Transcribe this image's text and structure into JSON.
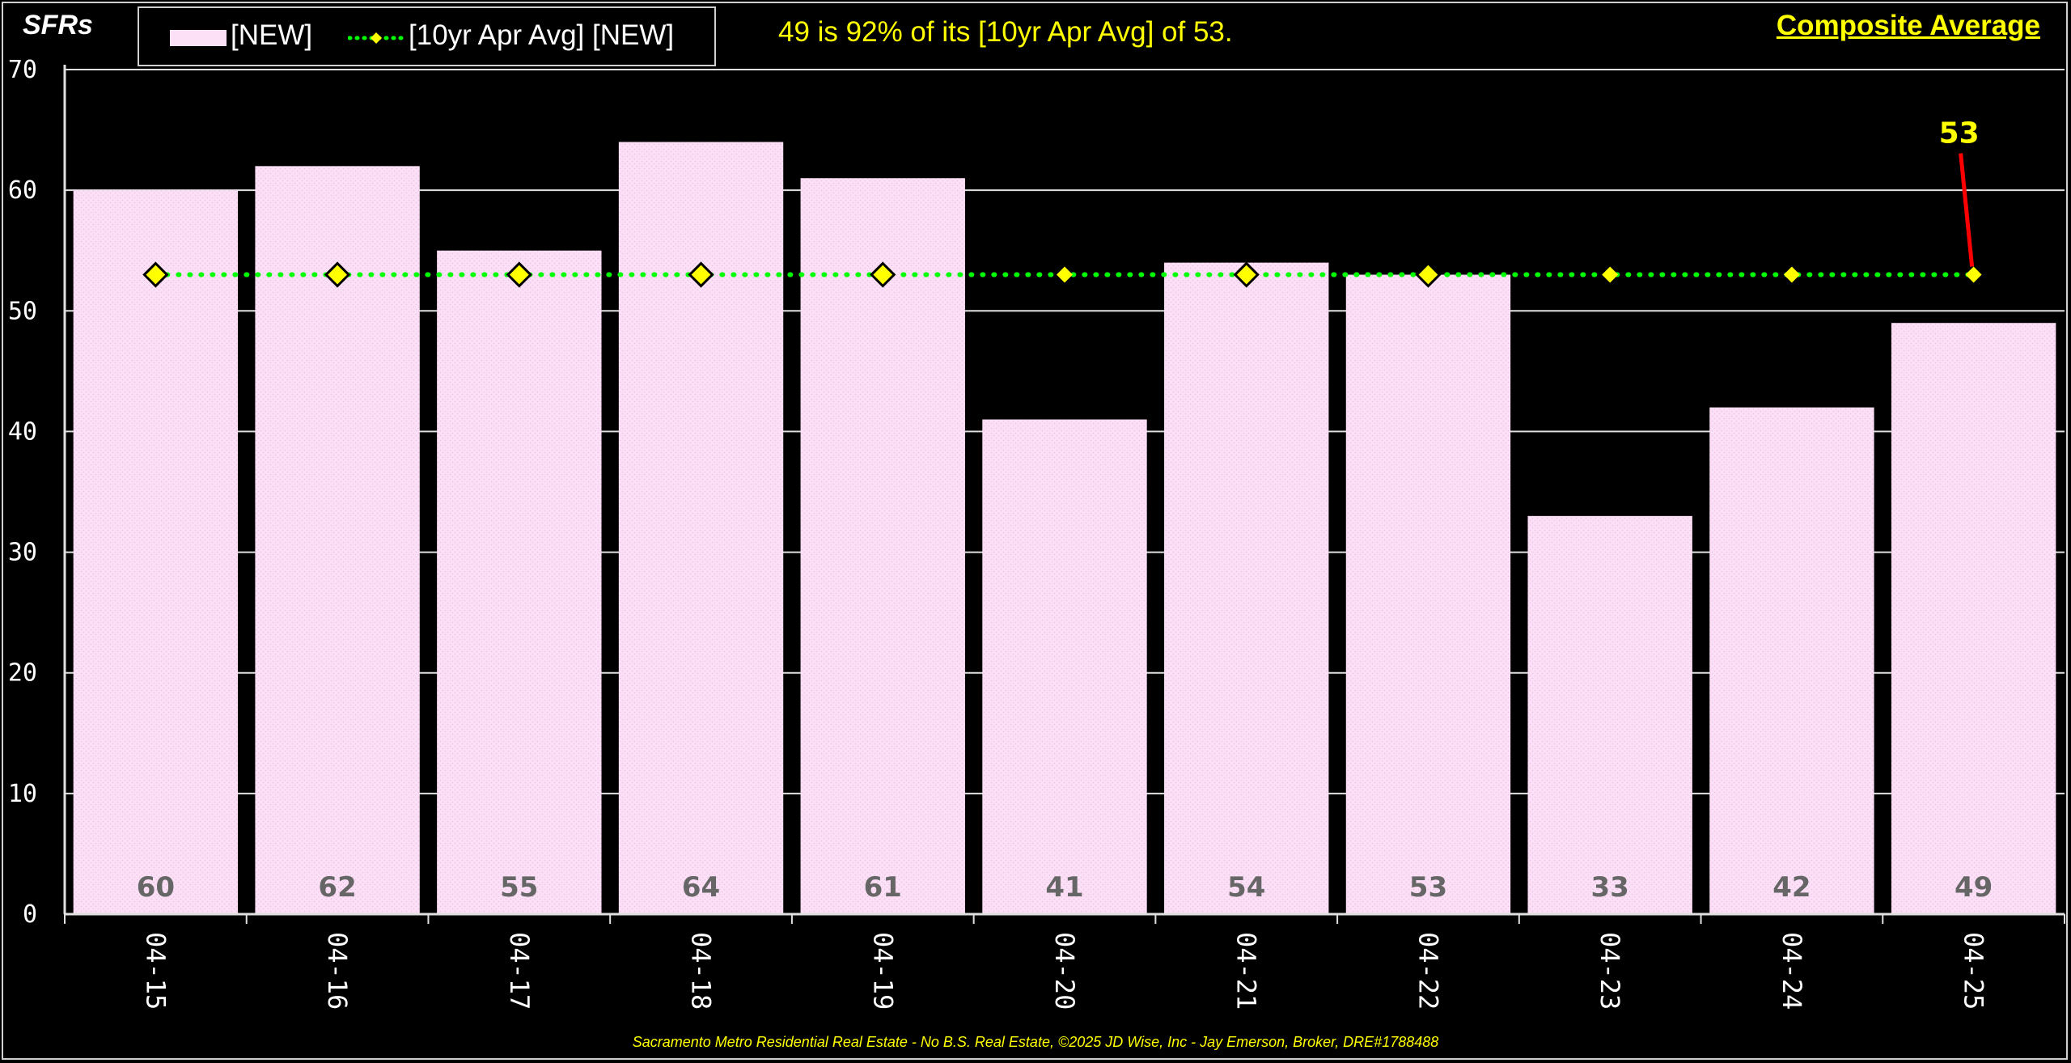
{
  "chart_data": {
    "type": "bar",
    "ylabel": "SFRs",
    "ylim": [
      0,
      70
    ],
    "yticks": [
      0,
      10,
      20,
      30,
      40,
      50,
      60,
      70
    ],
    "categories": [
      "04-15",
      "04-16",
      "04-17",
      "04-18",
      "04-19",
      "04-20",
      "04-21",
      "04-22",
      "04-23",
      "04-24",
      "04-25"
    ],
    "series": [
      {
        "name": "[NEW]",
        "type": "bar",
        "color": "#fbe0f6",
        "values": [
          60,
          62,
          55,
          64,
          61,
          41,
          54,
          53,
          33,
          42,
          49
        ]
      },
      {
        "name": "[10yr Apr Avg] [NEW]",
        "type": "line",
        "color": "#00ff00",
        "marker_color": "#ffff00",
        "values": [
          53,
          53,
          53,
          53,
          53,
          53,
          53,
          53,
          53,
          53,
          53
        ]
      }
    ],
    "data_labels": [
      "60",
      "62",
      "55",
      "64",
      "61",
      "41",
      "54",
      "53",
      "33",
      "42",
      "49"
    ],
    "callout": {
      "text": "53",
      "color": "#ffff00",
      "arrow_color": "#ff0000"
    },
    "grid": true,
    "legend_position": "top-left"
  },
  "header": {
    "summary": "49 is 92% of its [10yr Apr Avg] of 53.",
    "composite": "Composite Average"
  },
  "footer": "Sacramento Metro Residential Real Estate - No B.S. Real Estate, ©2025 JD Wise, Inc - Jay Emerson, Broker, DRE#1788488",
  "colors": {
    "background": "#000000",
    "accent": "#ffff00",
    "bar": "#fbe0f6",
    "avg_line": "#00ff00"
  }
}
